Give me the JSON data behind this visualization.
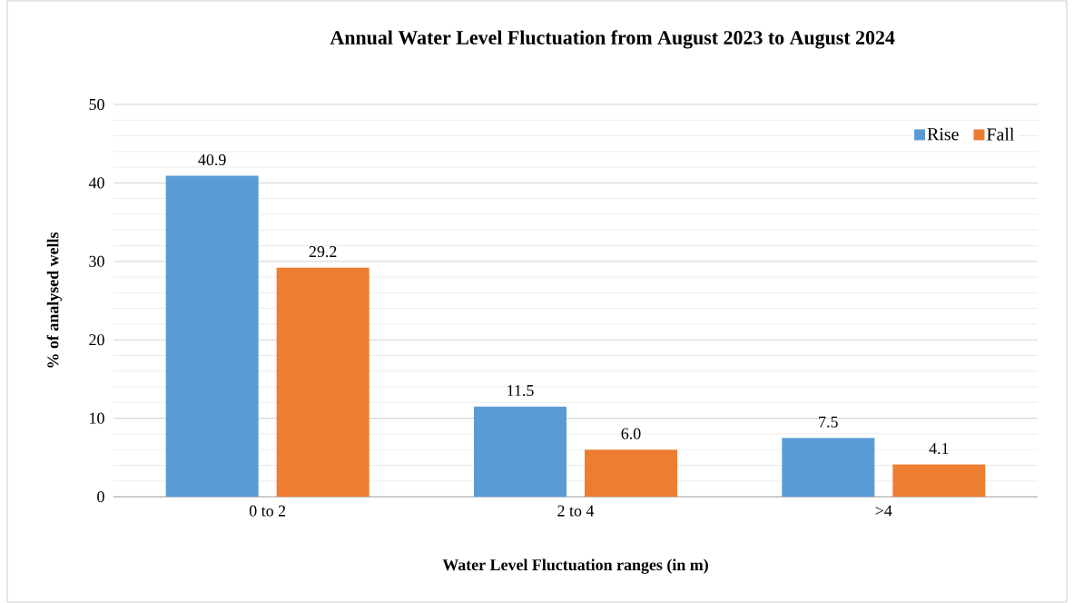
{
  "chart_data": {
    "type": "bar",
    "title": "Annual Water Level Fluctuation from August 2023 to August 2024",
    "xlabel": "Water Level Fluctuation ranges (in m)",
    "ylabel": "% of analysed wells",
    "categories": [
      "0 to 2",
      "2 to 4",
      ">4"
    ],
    "series": [
      {
        "name": "Rise",
        "color": "#5b9bd5",
        "values": [
          40.9,
          11.5,
          7.5
        ],
        "value_labels": [
          "40.9",
          "11.5",
          "7.5"
        ]
      },
      {
        "name": "Fall",
        "color": "#ed7d31",
        "values": [
          29.2,
          6.0,
          4.1
        ],
        "value_labels": [
          "29.2",
          "6.0",
          "4.1"
        ]
      }
    ],
    "ylim": [
      0,
      50
    ],
    "yticks": [
      0,
      10,
      20,
      30,
      40,
      50
    ],
    "grid": "y",
    "legend": "top right"
  }
}
